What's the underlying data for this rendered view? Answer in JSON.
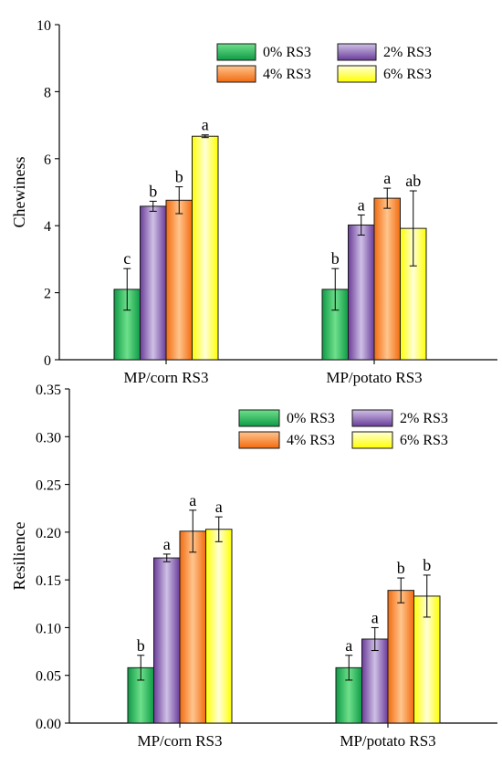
{
  "chart_data": [
    {
      "type": "bar",
      "title": "",
      "xlabel": "",
      "ylabel": "Chewiness",
      "ylim": [
        0,
        10
      ],
      "yticks": [
        0,
        2,
        4,
        6,
        8,
        10
      ],
      "ytick_labels": [
        "0",
        "2",
        "4",
        "6",
        "8",
        "10"
      ],
      "categories": [
        "MP/corn RS3",
        "MP/potato RS3"
      ],
      "series": [
        {
          "name": "0% RS3",
          "values": [
            2.1,
            2.1
          ],
          "errors": [
            0.62,
            0.62
          ],
          "labels": [
            "c",
            "b"
          ]
        },
        {
          "name": "2% RS3",
          "values": [
            4.58,
            4.02
          ],
          "errors": [
            0.15,
            0.3
          ],
          "labels": [
            "b",
            "a"
          ]
        },
        {
          "name": "4% RS3",
          "values": [
            4.76,
            4.82
          ],
          "errors": [
            0.4,
            0.3
          ],
          "labels": [
            "b",
            "a"
          ]
        },
        {
          "name": "6% RS3",
          "values": [
            6.67,
            3.92
          ],
          "errors": [
            0.04,
            1.12
          ],
          "labels": [
            "a",
            "ab"
          ]
        }
      ],
      "legend": "top-right, 2 columns",
      "grid": false
    },
    {
      "type": "bar",
      "title": "",
      "xlabel": "",
      "ylabel": "Resilience",
      "ylim": [
        0,
        0.35
      ],
      "yticks": [
        0,
        0.05,
        0.1,
        0.15,
        0.2,
        0.25,
        0.3,
        0.35
      ],
      "ytick_labels": [
        "0.00",
        "0.05",
        "0.10",
        "0.15",
        "0.20",
        "0.25",
        "0.30",
        "0.35"
      ],
      "categories": [
        "MP/corn RS3",
        "MP/potato RS3"
      ],
      "series": [
        {
          "name": "0% RS3",
          "values": [
            0.058,
            0.058
          ],
          "errors": [
            0.013,
            0.013
          ],
          "labels": [
            "b",
            "a"
          ]
        },
        {
          "name": "2% RS3",
          "values": [
            0.173,
            0.088
          ],
          "errors": [
            0.004,
            0.012
          ],
          "labels": [
            "a",
            "a"
          ]
        },
        {
          "name": "4% RS3",
          "values": [
            0.201,
            0.139
          ],
          "errors": [
            0.022,
            0.013
          ],
          "labels": [
            "a",
            "b"
          ]
        },
        {
          "name": "6% RS3",
          "values": [
            0.203,
            0.133
          ],
          "errors": [
            0.013,
            0.022
          ],
          "labels": [
            "a",
            "b"
          ]
        }
      ],
      "legend": "top-right, 2 columns",
      "grid": false
    }
  ],
  "colors": {
    "0% RS3": {
      "dark": "#0e9a45",
      "light": "#6fe08c"
    },
    "2% RS3": {
      "dark": "#6a3d9a",
      "light": "#cfc0e6"
    },
    "4% RS3": {
      "dark": "#f26b0f",
      "light": "#ffc58d"
    },
    "6% RS3": {
      "dark": "#ffff00",
      "light": "#ffffd8"
    }
  }
}
